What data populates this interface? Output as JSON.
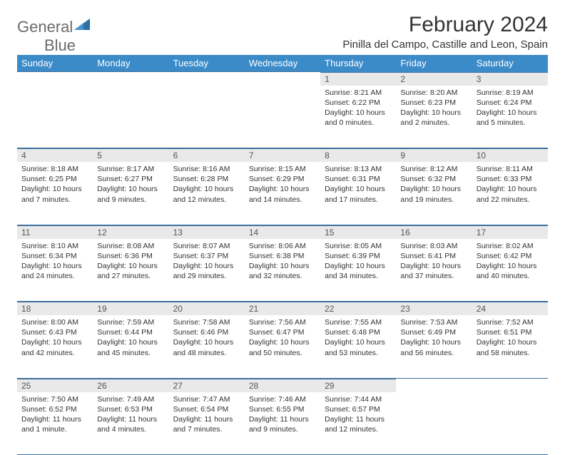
{
  "brand": {
    "text1": "General",
    "text2": "Blue",
    "logo_color": "#2b6fa3"
  },
  "title": "February 2024",
  "subtitle": "Pinilla del Campo, Castille and Leon, Spain",
  "header_bg": "#3b8bc9",
  "daynum_bg": "#e9e9e9",
  "rule_color": "#3b6f9c",
  "weekdays": [
    "Sunday",
    "Monday",
    "Tuesday",
    "Wednesday",
    "Thursday",
    "Friday",
    "Saturday"
  ],
  "weeks": [
    [
      null,
      null,
      null,
      null,
      {
        "n": "1",
        "sr": "Sunrise: 8:21 AM",
        "ss": "Sunset: 6:22 PM",
        "dl": "Daylight: 10 hours and 0 minutes."
      },
      {
        "n": "2",
        "sr": "Sunrise: 8:20 AM",
        "ss": "Sunset: 6:23 PM",
        "dl": "Daylight: 10 hours and 2 minutes."
      },
      {
        "n": "3",
        "sr": "Sunrise: 8:19 AM",
        "ss": "Sunset: 6:24 PM",
        "dl": "Daylight: 10 hours and 5 minutes."
      }
    ],
    [
      {
        "n": "4",
        "sr": "Sunrise: 8:18 AM",
        "ss": "Sunset: 6:25 PM",
        "dl": "Daylight: 10 hours and 7 minutes."
      },
      {
        "n": "5",
        "sr": "Sunrise: 8:17 AM",
        "ss": "Sunset: 6:27 PM",
        "dl": "Daylight: 10 hours and 9 minutes."
      },
      {
        "n": "6",
        "sr": "Sunrise: 8:16 AM",
        "ss": "Sunset: 6:28 PM",
        "dl": "Daylight: 10 hours and 12 minutes."
      },
      {
        "n": "7",
        "sr": "Sunrise: 8:15 AM",
        "ss": "Sunset: 6:29 PM",
        "dl": "Daylight: 10 hours and 14 minutes."
      },
      {
        "n": "8",
        "sr": "Sunrise: 8:13 AM",
        "ss": "Sunset: 6:31 PM",
        "dl": "Daylight: 10 hours and 17 minutes."
      },
      {
        "n": "9",
        "sr": "Sunrise: 8:12 AM",
        "ss": "Sunset: 6:32 PM",
        "dl": "Daylight: 10 hours and 19 minutes."
      },
      {
        "n": "10",
        "sr": "Sunrise: 8:11 AM",
        "ss": "Sunset: 6:33 PM",
        "dl": "Daylight: 10 hours and 22 minutes."
      }
    ],
    [
      {
        "n": "11",
        "sr": "Sunrise: 8:10 AM",
        "ss": "Sunset: 6:34 PM",
        "dl": "Daylight: 10 hours and 24 minutes."
      },
      {
        "n": "12",
        "sr": "Sunrise: 8:08 AM",
        "ss": "Sunset: 6:36 PM",
        "dl": "Daylight: 10 hours and 27 minutes."
      },
      {
        "n": "13",
        "sr": "Sunrise: 8:07 AM",
        "ss": "Sunset: 6:37 PM",
        "dl": "Daylight: 10 hours and 29 minutes."
      },
      {
        "n": "14",
        "sr": "Sunrise: 8:06 AM",
        "ss": "Sunset: 6:38 PM",
        "dl": "Daylight: 10 hours and 32 minutes."
      },
      {
        "n": "15",
        "sr": "Sunrise: 8:05 AM",
        "ss": "Sunset: 6:39 PM",
        "dl": "Daylight: 10 hours and 34 minutes."
      },
      {
        "n": "16",
        "sr": "Sunrise: 8:03 AM",
        "ss": "Sunset: 6:41 PM",
        "dl": "Daylight: 10 hours and 37 minutes."
      },
      {
        "n": "17",
        "sr": "Sunrise: 8:02 AM",
        "ss": "Sunset: 6:42 PM",
        "dl": "Daylight: 10 hours and 40 minutes."
      }
    ],
    [
      {
        "n": "18",
        "sr": "Sunrise: 8:00 AM",
        "ss": "Sunset: 6:43 PM",
        "dl": "Daylight: 10 hours and 42 minutes."
      },
      {
        "n": "19",
        "sr": "Sunrise: 7:59 AM",
        "ss": "Sunset: 6:44 PM",
        "dl": "Daylight: 10 hours and 45 minutes."
      },
      {
        "n": "20",
        "sr": "Sunrise: 7:58 AM",
        "ss": "Sunset: 6:46 PM",
        "dl": "Daylight: 10 hours and 48 minutes."
      },
      {
        "n": "21",
        "sr": "Sunrise: 7:56 AM",
        "ss": "Sunset: 6:47 PM",
        "dl": "Daylight: 10 hours and 50 minutes."
      },
      {
        "n": "22",
        "sr": "Sunrise: 7:55 AM",
        "ss": "Sunset: 6:48 PM",
        "dl": "Daylight: 10 hours and 53 minutes."
      },
      {
        "n": "23",
        "sr": "Sunrise: 7:53 AM",
        "ss": "Sunset: 6:49 PM",
        "dl": "Daylight: 10 hours and 56 minutes."
      },
      {
        "n": "24",
        "sr": "Sunrise: 7:52 AM",
        "ss": "Sunset: 6:51 PM",
        "dl": "Daylight: 10 hours and 58 minutes."
      }
    ],
    [
      {
        "n": "25",
        "sr": "Sunrise: 7:50 AM",
        "ss": "Sunset: 6:52 PM",
        "dl": "Daylight: 11 hours and 1 minute."
      },
      {
        "n": "26",
        "sr": "Sunrise: 7:49 AM",
        "ss": "Sunset: 6:53 PM",
        "dl": "Daylight: 11 hours and 4 minutes."
      },
      {
        "n": "27",
        "sr": "Sunrise: 7:47 AM",
        "ss": "Sunset: 6:54 PM",
        "dl": "Daylight: 11 hours and 7 minutes."
      },
      {
        "n": "28",
        "sr": "Sunrise: 7:46 AM",
        "ss": "Sunset: 6:55 PM",
        "dl": "Daylight: 11 hours and 9 minutes."
      },
      {
        "n": "29",
        "sr": "Sunrise: 7:44 AM",
        "ss": "Sunset: 6:57 PM",
        "dl": "Daylight: 11 hours and 12 minutes."
      },
      null,
      null
    ]
  ]
}
